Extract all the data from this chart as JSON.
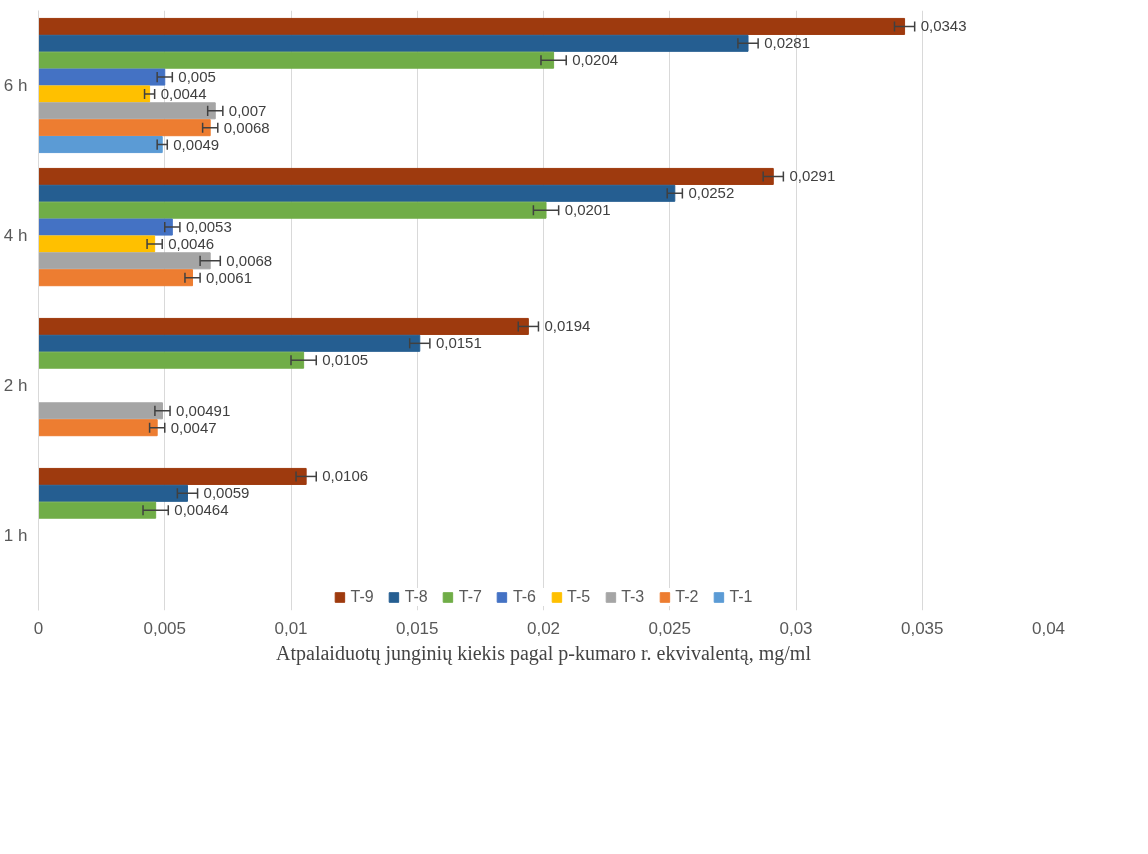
{
  "chart_data": {
    "type": "bar",
    "orientation": "horizontal",
    "xlabel": "Atpalaiduotų junginių kiekis pagal p-kumaro r. ekvivalentą, mg/ml",
    "categories": [
      "6 h",
      "4 h",
      "2 h",
      "1 h"
    ],
    "xlim": [
      0,
      0.04
    ],
    "xticks": [
      {
        "value": 0,
        "label": "0"
      },
      {
        "value": 0.005,
        "label": "0,005"
      },
      {
        "value": 0.01,
        "label": "0,01"
      },
      {
        "value": 0.015,
        "label": "0,015"
      },
      {
        "value": 0.02,
        "label": "0,02"
      },
      {
        "value": 0.025,
        "label": "0,025"
      },
      {
        "value": 0.03,
        "label": "0,03"
      },
      {
        "value": 0.035,
        "label": "0,035"
      },
      {
        "value": 0.04,
        "label": "0,04"
      }
    ],
    "grid": "x",
    "legend": "bottom",
    "series": [
      {
        "name": "T-9",
        "color": "#9e3a0e",
        "values": [
          0.0343,
          0.0291,
          0.0194,
          0.0106
        ],
        "errors": [
          0.0004,
          0.0004,
          0.0004,
          0.0004
        ],
        "value_labels": [
          "0,0343",
          "0,0291",
          "0,0194",
          "0,0106"
        ]
      },
      {
        "name": "T-8",
        "color": "#255e91",
        "values": [
          0.0281,
          0.0252,
          0.0151,
          0.0059
        ],
        "errors": [
          0.0004,
          0.0003,
          0.0004,
          0.0004
        ],
        "value_labels": [
          "0,0281",
          "0,0252",
          "0,0151",
          "0,0059"
        ]
      },
      {
        "name": "T-7",
        "color": "#70ad47",
        "values": [
          0.0204,
          0.0201,
          0.0105,
          0.00464
        ],
        "errors": [
          0.0005,
          0.0005,
          0.0005,
          0.0005
        ],
        "value_labels": [
          "0,0204",
          "0,0201",
          "0,0105",
          "0,00464"
        ]
      },
      {
        "name": "T-6",
        "color": "#4472c4",
        "values": [
          0.005,
          0.0053,
          null,
          null
        ],
        "errors": [
          0.0003,
          0.0003,
          null,
          null
        ],
        "value_labels": [
          "0,005",
          "0,0053",
          null,
          null
        ]
      },
      {
        "name": "T-5",
        "color": "#ffc000",
        "values": [
          0.0044,
          0.0046,
          null,
          null
        ],
        "errors": [
          0.0002,
          0.0003,
          null,
          null
        ],
        "value_labels": [
          "0,0044",
          "0,0046",
          null,
          null
        ]
      },
      {
        "name": "T-3",
        "color": "#a5a5a5",
        "values": [
          0.007,
          0.0068,
          0.00491,
          null
        ],
        "errors": [
          0.0003,
          0.0004,
          0.0003,
          null
        ],
        "value_labels": [
          "0,007",
          "0,0068",
          "0,00491",
          null
        ]
      },
      {
        "name": "T-2",
        "color": "#ed7d31",
        "values": [
          0.0068,
          0.0061,
          0.0047,
          null
        ],
        "errors": [
          0.0003,
          0.0003,
          0.0003,
          null
        ],
        "value_labels": [
          "0,0068",
          "0,0061",
          "0,0047",
          null
        ]
      },
      {
        "name": "T-1",
        "color": "#5b9bd5",
        "values": [
          0.0049,
          null,
          null,
          null
        ],
        "errors": [
          0.0002,
          null,
          null,
          null
        ],
        "value_labels": [
          "0,0049",
          null,
          null,
          null
        ]
      }
    ]
  }
}
